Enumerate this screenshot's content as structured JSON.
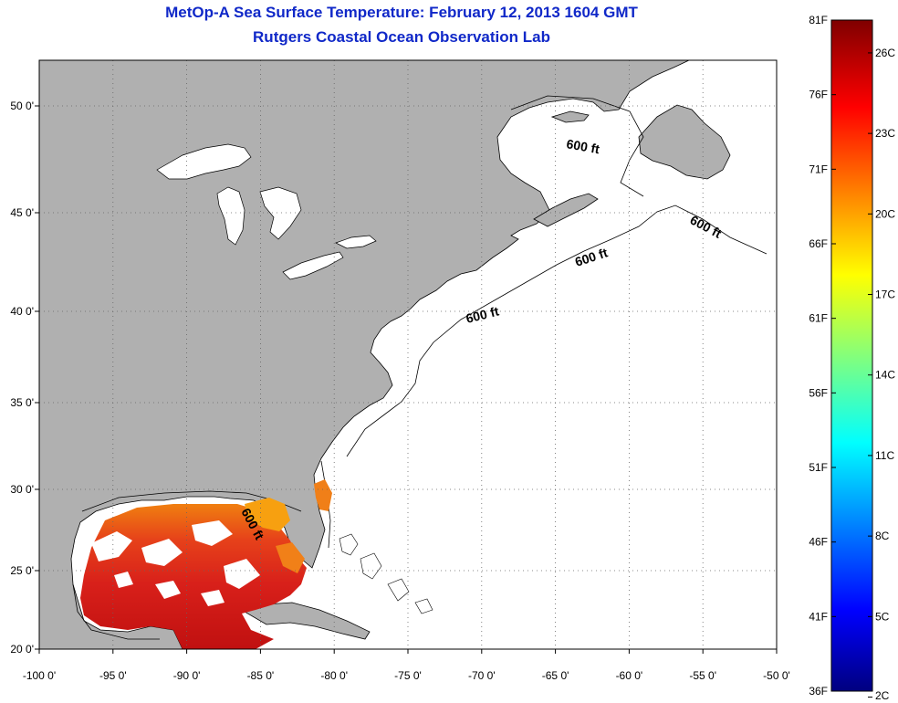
{
  "title": "MetOp-A Sea Surface Temperature:  February 12, 2013 1604 GMT",
  "subtitle": "Rutgers Coastal Ocean Observation Lab",
  "map": {
    "lon_ticks": [
      "-100 0'",
      "-95 0'",
      "-90 0'",
      "-85 0'",
      "-80 0'",
      "-75 0'",
      "-70 0'",
      "-65 0'",
      "-60 0'",
      "-55 0'",
      "-50 0'"
    ],
    "lat_ticks": [
      "50 0'",
      "45 0'",
      "40 0'",
      "35 0'",
      "30 0'",
      "25 0'",
      "20 0'"
    ],
    "contour_labels": [
      "600 ft",
      "600 ft",
      "600 ft",
      "600 ft",
      "600 ft"
    ],
    "land_color": "#b0b0b0",
    "ocean_color": "#ffffff"
  },
  "colorbar": {
    "f_labels": [
      "81F",
      "76F",
      "71F",
      "66F",
      "61F",
      "56F",
      "51F",
      "46F",
      "41F",
      "36F"
    ],
    "c_labels": [
      "26C",
      "23C",
      "20C",
      "17C",
      "14C",
      "11C",
      "8C",
      "5C",
      "2C"
    ],
    "range_f": [
      36,
      81
    ],
    "colors": [
      "#000080",
      "#0000ff",
      "#00ffff",
      "#ffff00",
      "#ff0000",
      "#800000"
    ]
  }
}
